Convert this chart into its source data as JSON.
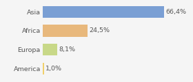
{
  "categories": [
    "America",
    "Europa",
    "Africa",
    "Asia"
  ],
  "values": [
    1.0,
    8.1,
    24.5,
    66.4
  ],
  "labels": [
    "1,0%",
    "8,1%",
    "24,5%",
    "66,4%"
  ],
  "bar_colors": [
    "#f0d06a",
    "#c8d888",
    "#e8b87c",
    "#7a9fd4"
  ],
  "xlim": [
    0,
    80
  ],
  "background_color": "#f5f5f5",
  "bar_height": 0.62,
  "label_fontsize": 6.8,
  "tick_fontsize": 6.8,
  "label_color": "#555555",
  "tick_color": "#555555"
}
